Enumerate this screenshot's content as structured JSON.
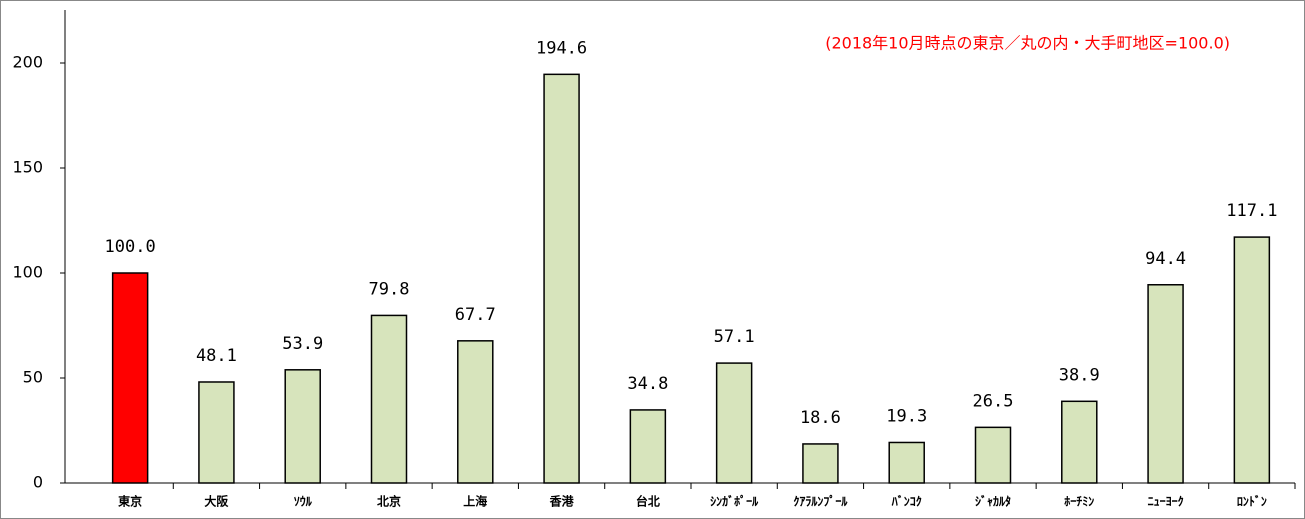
{
  "chart_data": {
    "type": "bar",
    "annotation": "(2018年10月時点の東京／丸の内・大手町地区=100.0)",
    "categories": [
      "東京",
      "大阪",
      "ｿｳﾙ",
      "北京",
      "上海",
      "香港",
      "台北",
      "ｼﾝｶﾞﾎﾟｰﾙ",
      "ｸｱﾗﾙﾝﾌﾟｰﾙ",
      "ﾊﾞﾝｺｸ",
      "ｼﾞｬｶﾙﾀ",
      "ﾎｰﾁﾐﾝ",
      "ﾆｭｰﾖｰｸ",
      "ﾛﾝﾄﾞﾝ"
    ],
    "values": [
      100,
      48.1,
      53.9,
      79.8,
      67.7,
      194.6,
      34.8,
      57.1,
      18.6,
      19.3,
      26.5,
      38.9,
      94.4,
      117.1
    ],
    "value_labels": [
      "100.0",
      "48.1",
      "53.9",
      "79.8",
      "67.7",
      "194.6",
      "34.8",
      "57.1",
      "18.6",
      "19.3",
      "26.5",
      "38.9",
      "94.4",
      "117.1"
    ],
    "colors": [
      "#ff0000",
      "#d7e4bc",
      "#d7e4bc",
      "#d7e4bc",
      "#d7e4bc",
      "#d7e4bc",
      "#d7e4bc",
      "#d7e4bc",
      "#d7e4bc",
      "#d7e4bc",
      "#d7e4bc",
      "#d7e4bc",
      "#d7e4bc",
      "#d7e4bc"
    ],
    "ylim": [
      0,
      200
    ],
    "yticks": [
      0,
      50,
      100,
      150,
      200
    ],
    "grid": false
  }
}
